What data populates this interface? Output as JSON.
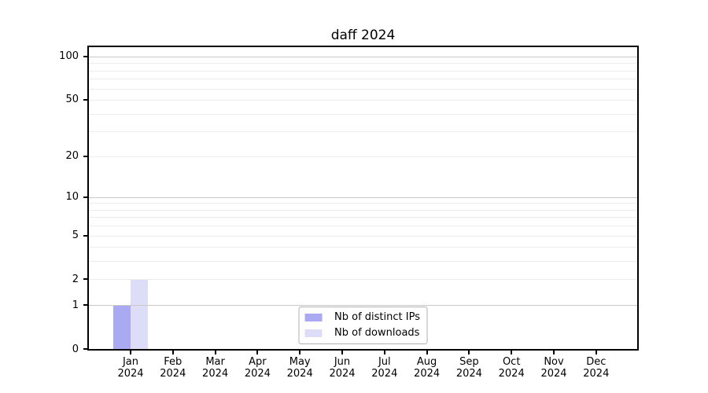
{
  "chart_data": {
    "type": "bar",
    "title": "daff 2024",
    "scale": "log1p",
    "xlabel": "",
    "ylabel": "",
    "categories": [
      "Jan 2024",
      "Feb 2024",
      "Mar 2024",
      "Apr 2024",
      "May 2024",
      "Jun 2024",
      "Jul 2024",
      "Aug 2024",
      "Sep 2024",
      "Oct 2024",
      "Nov 2024",
      "Dec 2024"
    ],
    "series": [
      {
        "name": "Nb of distinct IPs",
        "color": "#aaaaf2",
        "values": [
          1,
          0,
          0,
          0,
          0,
          0,
          0,
          0,
          0,
          0,
          0,
          0
        ]
      },
      {
        "name": "Nb of downloads",
        "color": "#ddddf8",
        "values": [
          2,
          0,
          0,
          0,
          0,
          0,
          0,
          0,
          0,
          0,
          0,
          0
        ]
      }
    ],
    "y_ticks": [
      0,
      1,
      2,
      5,
      10,
      20,
      50,
      100
    ],
    "y_tick_labels": [
      "0",
      "1",
      "2",
      "5",
      "10",
      "20",
      "50",
      "100"
    ],
    "y_minor_gridlines": [
      3,
      4,
      6,
      7,
      8,
      9,
      30,
      40,
      60,
      70,
      80,
      90
    ],
    "ylim": [
      0,
      116
    ],
    "grid": true,
    "legend_position": "lower center"
  },
  "colors": {
    "distinct_ips_bar": "#aaaaf2",
    "downloads_bar": "#ddddf8",
    "grid_decade": "#c9c9c9",
    "grid_light": "#ededed",
    "spine": "#000000",
    "legend_border": "#b0b0b0",
    "background": "#ffffff"
  }
}
